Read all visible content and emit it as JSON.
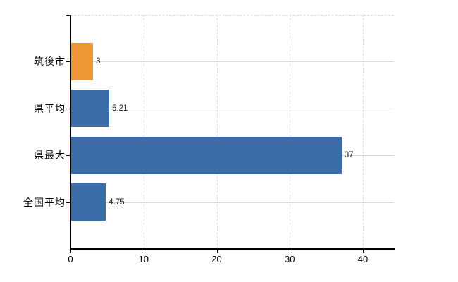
{
  "chart_data": {
    "type": "bar",
    "orientation": "horizontal",
    "title": "",
    "xlabel": "",
    "ylabel": "",
    "categories": [
      "筑後市",
      "県平均",
      "県最大",
      "全国平均"
    ],
    "values": [
      3,
      5.21,
      37,
      4.75
    ],
    "value_labels": [
      "3",
      "5.21",
      "37",
      "4.75"
    ],
    "bar_colors": [
      "#ed9737",
      "#3c6ca7",
      "#3c6ca7",
      "#3c6ca7"
    ],
    "xlim": [
      0,
      44.3
    ],
    "xticks": [
      0,
      10,
      20,
      30,
      40
    ],
    "xtick_labels": [
      "0",
      "10",
      "20",
      "30",
      "40"
    ],
    "grid": true,
    "legend": false,
    "colors": {
      "highlight_bar": "#ed9737",
      "default_bar": "#3c6ca7",
      "row_gridline": "#d6dad3",
      "dashed_gridline": "#dcdcda",
      "axis": "#000000",
      "label_text": "#000000",
      "value_text": "#222222",
      "background": "#ffffff"
    }
  }
}
